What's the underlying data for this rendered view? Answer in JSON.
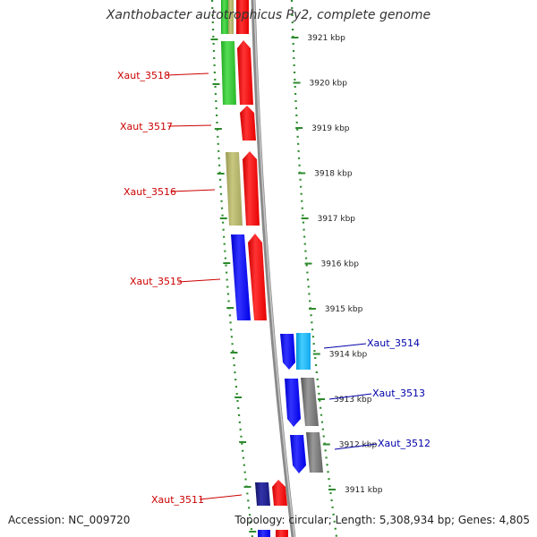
{
  "title": "Xanthobacter autotrophicus Py2, complete genome",
  "accession_text": "Accession: NC_009720",
  "topology_text": "Topology: circular; Length: 5,308,934 bp; Genes: 4,805",
  "ruler": [
    "3921 kbp",
    "3920 kbp",
    "3919 kbp",
    "3918 kbp",
    "3917 kbp",
    "3916 kbp",
    "3915 kbp",
    "3914 kbp",
    "3913 kbp",
    "3912 kbp",
    "3911 kbp"
  ],
  "genes_left": [
    "Xaut_3518",
    "Xaut_3517",
    "Xaut_3516",
    "Xaut_3515",
    "Xaut_3511"
  ],
  "genes_right": [
    "Xaut_3514",
    "Xaut_3513",
    "Xaut_3512"
  ],
  "colors": {
    "red": "#ff1a1a",
    "green": "#33cc33",
    "olive": "#b3b366",
    "blue": "#1a1aff",
    "cyan": "#1ab3ff",
    "gray": "#777777",
    "navy": "#1a1a80",
    "tick": "#2e8b2e",
    "label_left": "#cc0000",
    "label_right": "#0000aa"
  }
}
